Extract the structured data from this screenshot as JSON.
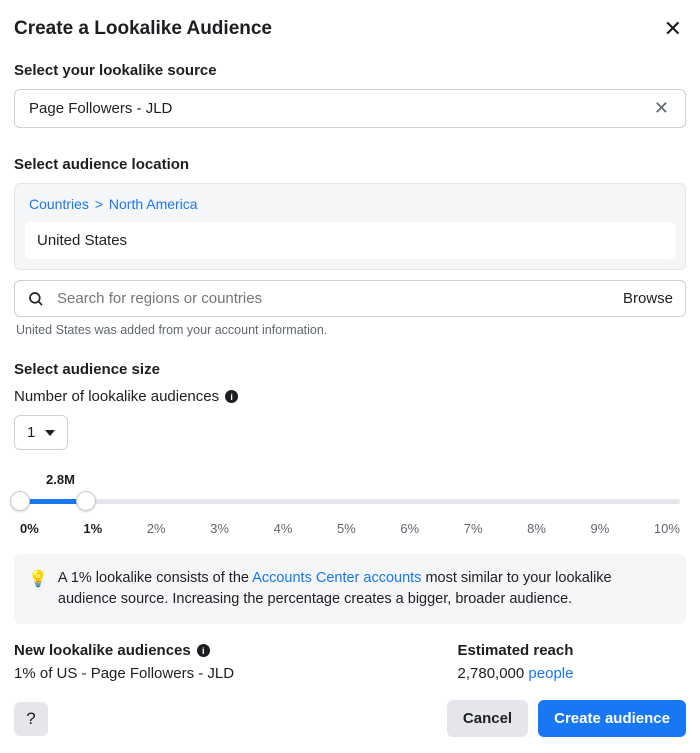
{
  "colors": {
    "accent": "#1877f2",
    "text": "#1c1e21",
    "muted": "#606770",
    "panel_bg": "#f5f6f7",
    "border": "#ced0d4",
    "track_bg": "#e4e6eb"
  },
  "header": {
    "title": "Create a Lookalike Audience"
  },
  "source": {
    "section_label": "Select your lookalike source",
    "value": "Page Followers - JLD"
  },
  "location": {
    "section_label": "Select audience location",
    "breadcrumb": {
      "level1": "Countries",
      "level2": "North America"
    },
    "selected_country": "United States",
    "search_placeholder": "Search for regions or countries",
    "browse_label": "Browse",
    "helper": "United States was added from your account information."
  },
  "size": {
    "section_label": "Select audience size",
    "count_label": "Number of lookalike audiences",
    "count_value": "1",
    "slider": {
      "value_label": "2.8M",
      "fill_percent": 10,
      "thumb_positions_percent": [
        0,
        10
      ],
      "ticks": [
        "0%",
        "1%",
        "2%",
        "3%",
        "4%",
        "5%",
        "6%",
        "7%",
        "8%",
        "9%",
        "10%"
      ],
      "bold_tick_indices": [
        0,
        1
      ]
    }
  },
  "tip": {
    "prefix": "A 1% lookalike consists of the ",
    "link_text": "Accounts Center accounts",
    "suffix": " most similar to your lookalike audience source. Increasing the percentage creates a bigger, broader audience."
  },
  "summary": {
    "new_label": "New lookalike audiences",
    "new_value": "1% of US - Page Followers - JLD",
    "reach_label": "Estimated reach",
    "reach_value": "2,780,000",
    "reach_unit": "people"
  },
  "footer": {
    "cancel": "Cancel",
    "create": "Create audience"
  }
}
